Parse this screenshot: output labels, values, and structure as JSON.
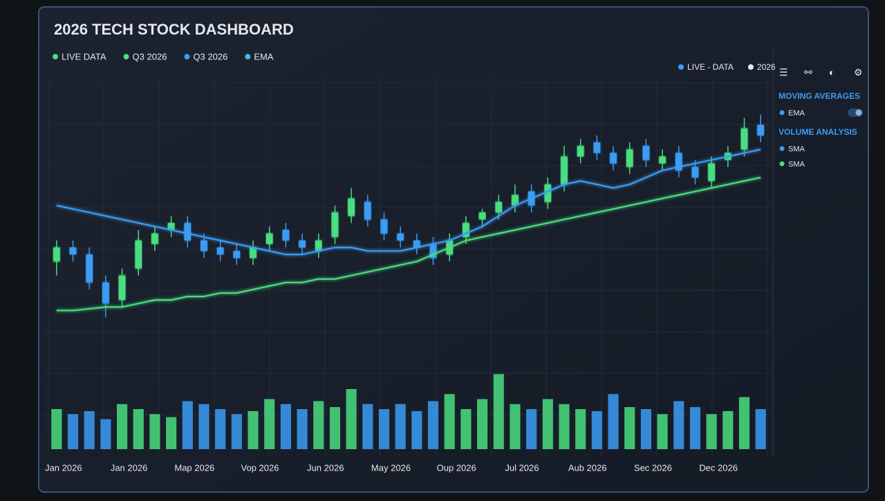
{
  "header": {
    "title": "2026 TECH STOCK DASHBOARD",
    "legend": [
      {
        "text": "LIVE DATA",
        "color": "#4ade80"
      },
      {
        "text": "Q3 2026",
        "color": "#4ade80"
      },
      {
        "text": "Q3 2026",
        "color": "#3b9cf5"
      },
      {
        "text": "EMA",
        "color": "#38bdf8"
      }
    ],
    "status": [
      {
        "text": "LIVE - DATA",
        "color": "#3b9cf5"
      },
      {
        "text": "2026",
        "color": "#e5e7eb"
      }
    ]
  },
  "sidebar": {
    "sections": [
      {
        "title": "MOVING AVERAGES",
        "items": [
          {
            "text": "EMA",
            "color": "#3b9cf5"
          }
        ]
      },
      {
        "title": "VOLUME ANALYSIS",
        "items": [
          {
            "text": "SMA",
            "color": "#3b9cf5"
          },
          {
            "text": "SMA",
            "color": "#4ade80"
          }
        ]
      }
    ]
  },
  "chart_data": {
    "type": "candlestick",
    "categories": [
      "Jan 2026",
      null,
      null,
      null,
      "Jan 2026",
      null,
      null,
      null,
      "Map 2026",
      null,
      null,
      null,
      "Vop 2026",
      null,
      null,
      null,
      "Jun 2026",
      null,
      null,
      null,
      "May 2026",
      null,
      null,
      null,
      "Oup 2026",
      null,
      null,
      null,
      "Jul 2026",
      null,
      null,
      null,
      "Aub 2026",
      null,
      null,
      null,
      "Sec 2026",
      null,
      null,
      null,
      "Dec 2026",
      null,
      null,
      null
    ],
    "open": [
      44,
      48,
      46,
      38,
      33,
      42,
      49,
      53,
      55,
      50,
      48,
      47,
      45,
      49,
      53,
      50,
      47,
      51,
      57,
      61,
      56,
      52,
      50,
      49,
      46,
      51,
      56,
      58,
      60,
      64,
      61,
      66,
      74,
      78,
      75,
      71,
      77,
      72,
      75,
      71,
      67,
      73,
      76,
      83
    ],
    "high": [
      50,
      50,
      48,
      40,
      42,
      53,
      54,
      57,
      57,
      52,
      50,
      49,
      50,
      54,
      55,
      52,
      52,
      60,
      65,
      63,
      58,
      54,
      52,
      51,
      52,
      57,
      59,
      63,
      66,
      66,
      68,
      77,
      79,
      80,
      77,
      78,
      79,
      76,
      77,
      73,
      74,
      77,
      85,
      86
    ],
    "low": [
      40,
      44,
      36,
      28,
      31,
      40,
      47,
      51,
      48,
      45,
      44,
      43,
      43,
      47,
      48,
      46,
      45,
      49,
      55,
      54,
      50,
      48,
      46,
      43,
      44,
      49,
      54,
      56,
      58,
      58,
      59,
      64,
      72,
      73,
      70,
      69,
      71,
      70,
      68,
      66,
      65,
      71,
      74,
      78
    ],
    "close": [
      48,
      46,
      38,
      32,
      40,
      50,
      52,
      55,
      50,
      47,
      46,
      45,
      48,
      52,
      50,
      48,
      50,
      58,
      62,
      56,
      52,
      50,
      48,
      45,
      50,
      55,
      58,
      61,
      63,
      60,
      66,
      74,
      77,
      75,
      72,
      76,
      73,
      74,
      70,
      68,
      72,
      75,
      82,
      80
    ],
    "volume": [
      40,
      35,
      38,
      30,
      45,
      40,
      35,
      32,
      48,
      45,
      40,
      35,
      38,
      50,
      45,
      40,
      48,
      42,
      60,
      45,
      40,
      45,
      38,
      48,
      55,
      40,
      50,
      75,
      45,
      40,
      50,
      45,
      40,
      38,
      55,
      42,
      40,
      35,
      48,
      42,
      35,
      38,
      52,
      40
    ],
    "up_color": "#4ade80",
    "down_color": "#3b9cf5",
    "ylim": [
      20,
      95
    ],
    "y2lim": [
      0,
      100
    ],
    "series": [
      {
        "color": "#3b9cf5",
        "values": [
          60,
          59,
          58,
          57,
          56,
          55,
          54,
          53,
          52,
          51,
          50,
          49,
          48,
          47,
          46,
          46,
          47,
          48,
          48,
          47,
          47,
          47,
          48,
          49,
          50,
          52,
          54,
          57,
          60,
          62,
          64,
          66,
          67,
          66,
          65,
          66,
          68,
          70,
          71,
          72,
          73,
          74,
          75,
          76
        ]
      },
      {
        "color": "#4ade80",
        "values": [
          30,
          30,
          30.5,
          31,
          31,
          32,
          33,
          33,
          34,
          34,
          35,
          35,
          36,
          37,
          38,
          38,
          39,
          39,
          40,
          41,
          42,
          43,
          44,
          46,
          48,
          50,
          51,
          52,
          53,
          54,
          55,
          56,
          57,
          58,
          59,
          60,
          61,
          62,
          63,
          64,
          65,
          66,
          67,
          68
        ]
      }
    ]
  }
}
